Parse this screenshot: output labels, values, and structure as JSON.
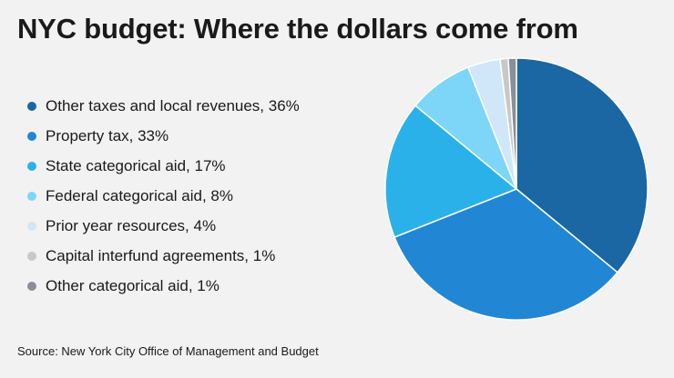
{
  "title": "NYC budget: Where the dollars come from",
  "source": "Source: New York City Office of Management and Budget",
  "chart_data": {
    "type": "pie",
    "title": "NYC budget: Where the dollars come from",
    "slices": [
      {
        "label": "Other taxes and local revenues, 36%",
        "value": 36,
        "color": "#1a67a3"
      },
      {
        "label": "Property tax, 33%",
        "value": 33,
        "color": "#2187d4"
      },
      {
        "label": "State categorical aid, 17%",
        "value": 17,
        "color": "#2bb1ea"
      },
      {
        "label": "Federal categorical aid, 8%",
        "value": 8,
        "color": "#7dd6f7"
      },
      {
        "label": "Prior year resources, 4%",
        "value": 4,
        "color": "#d0e6f9"
      },
      {
        "label": "Capital interfund agreements, 1%",
        "value": 1,
        "color": "#c8c8c8"
      },
      {
        "label": "Other categorical aid, 1%",
        "value": 1,
        "color": "#898e99"
      }
    ],
    "legend_position": "left"
  }
}
